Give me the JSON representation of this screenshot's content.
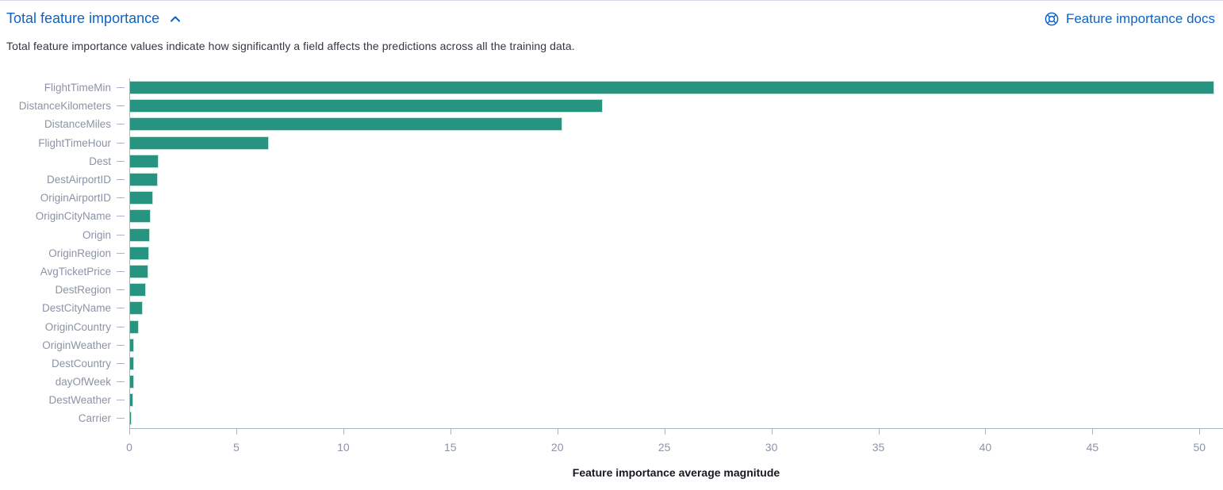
{
  "header": {
    "title": "Total feature importance",
    "docs_link_label": "Feature importance docs",
    "description": "Total feature importance values indicate how significantly a field affects the predictions across all the training data."
  },
  "icons": {
    "collapse": "chevron-up-icon",
    "docs": "lifebuoy-help-icon"
  },
  "colors": {
    "link_blue": "#0b64c8",
    "bar_teal": "#269481",
    "axis_gray": "#aab3c5",
    "label_slate": "#8b93a6",
    "text_dark": "#343741"
  },
  "chart_data": {
    "type": "bar",
    "orientation": "horizontal",
    "title": "",
    "xlabel": "Feature importance average magnitude",
    "ylabel": "",
    "categories": [
      "FlightTimeMin",
      "DistanceKilometers",
      "DistanceMiles",
      "FlightTimeHour",
      "Dest",
      "DestAirportID",
      "OriginAirportID",
      "OriginCityName",
      "Origin",
      "OriginRegion",
      "AvgTicketPrice",
      "DestRegion",
      "DestCityName",
      "OriginCountry",
      "OriginWeather",
      "DestCountry",
      "dayOfWeek",
      "DestWeather",
      "Carrier"
    ],
    "values": [
      50.7,
      22.1,
      20.2,
      6.5,
      1.33,
      1.3,
      1.07,
      0.96,
      0.93,
      0.89,
      0.87,
      0.74,
      0.59,
      0.41,
      0.19,
      0.18,
      0.17,
      0.15,
      0.07
    ],
    "xticks": [
      0,
      5,
      10,
      15,
      20,
      25,
      30,
      35,
      40,
      45,
      50
    ],
    "xlim": [
      0,
      51.1
    ],
    "grid": false,
    "legend": "none",
    "bar_color": "#269481"
  }
}
